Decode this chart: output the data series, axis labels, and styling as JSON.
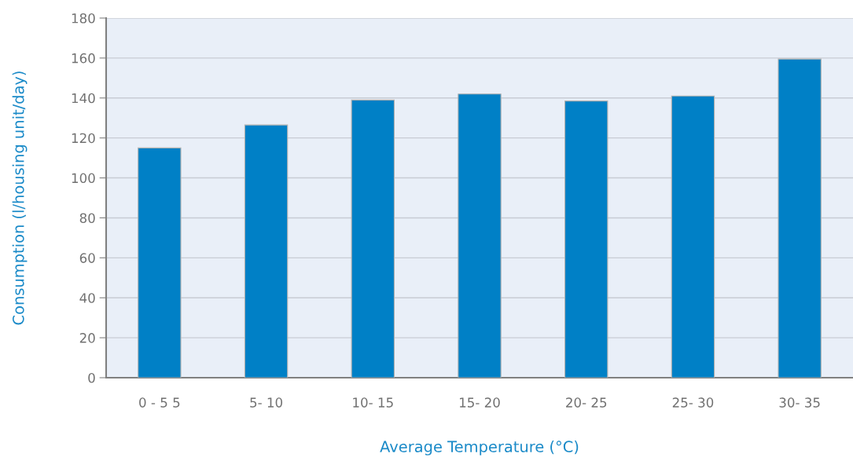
{
  "chart_data": {
    "type": "bar",
    "xlabel": "Average Temperature (°C)",
    "ylabel": "Consumption (l/housing unit/day)",
    "categories": [
      "0 - 5 5",
      "5- 10",
      "10- 15",
      "15- 20",
      "20- 25",
      "25- 30",
      "30- 35"
    ],
    "values": [
      115,
      126.5,
      139,
      142,
      138.5,
      141,
      159.5
    ],
    "color": "#0080c6",
    "ylim": [
      0,
      180
    ],
    "yticks": [
      0,
      20,
      40,
      60,
      80,
      100,
      120,
      140,
      160,
      180
    ],
    "grid": "y",
    "legend": false
  }
}
